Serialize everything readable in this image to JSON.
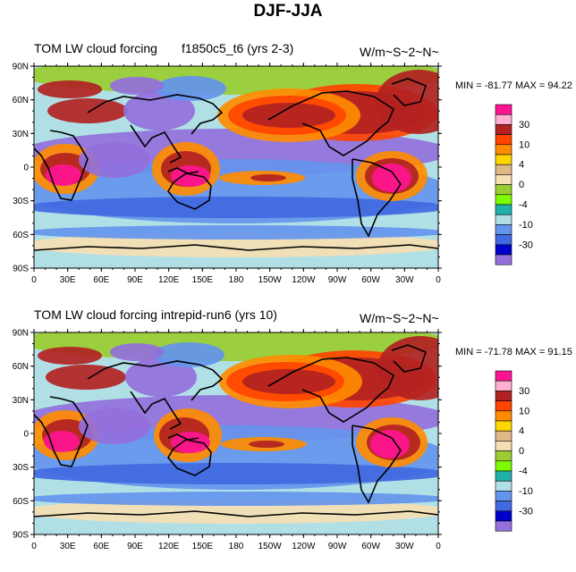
{
  "title": "DJF-JJA",
  "panels": [
    {
      "left_title": "TOM LW cloud forcing",
      "center_title": "f1850c5_t6 (yrs 2-3)",
      "right_title": "W/m~S~2~N~",
      "min_label": "MIN = -81.77",
      "max_label": "MAX =  94.22"
    },
    {
      "left_title": "TOM LW cloud forcing",
      "center_title": "intrepid-run6 (yrs 10)",
      "right_title": "W/m~S~2~N~",
      "min_label": "MIN = -71.78",
      "max_label": "MAX =  91.15"
    }
  ],
  "lat_labels": [
    "90N",
    "60N",
    "30N",
    "0",
    "30S",
    "60S",
    "90S"
  ],
  "lon_labels": [
    "0",
    "30E",
    "60E",
    "90E",
    "120E",
    "150E",
    "180",
    "150W",
    "120W",
    "90W",
    "60W",
    "30W",
    "0"
  ],
  "colorbar": {
    "labels": [
      "30",
      "10",
      "4",
      "0",
      "-4",
      "-10",
      "-30"
    ],
    "colors": [
      "#ff1493",
      "#ffb0d0",
      "#b22222",
      "#ff4500",
      "#ff8c00",
      "#ffd700",
      "#deb887",
      "#f5deb3",
      "#9acd32",
      "#7cfc00",
      "#20b2aa",
      "#b0e0e6",
      "#6495ed",
      "#4169e1",
      "#0000cd",
      "#9370db"
    ]
  },
  "palette": {
    "ocean": "#b0e0e6",
    "blue": "#6495ed",
    "deep_blue": "#4169e1",
    "green": "#9acd32",
    "yellow": "#ffd700",
    "orange": "#ff8c00",
    "red": "#b22222",
    "redorange": "#ff4500",
    "pink": "#ff1493",
    "tan": "#f5deb3",
    "purple": "#9370db",
    "coast": "#000000"
  }
}
